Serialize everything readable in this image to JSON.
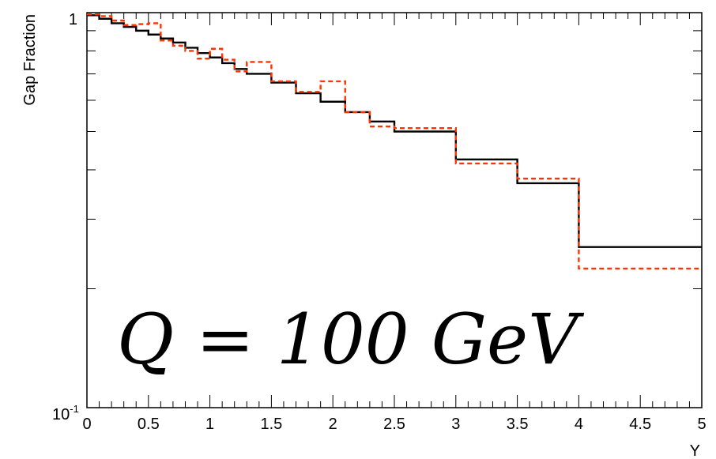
{
  "chart_data": {
    "type": "line",
    "ylabel": "Gap Fraction",
    "xlabel": "Y",
    "annotation": "Q = 100 GeV",
    "xlim": [
      0,
      5
    ],
    "ylim": [
      0.1,
      1
    ],
    "yscale": "log",
    "grid": false,
    "x_ticks": [
      {
        "value": 0,
        "label": "0"
      },
      {
        "value": 0.5,
        "label": "0.5"
      },
      {
        "value": 1,
        "label": "1"
      },
      {
        "value": 1.5,
        "label": "1.5"
      },
      {
        "value": 2,
        "label": "2"
      },
      {
        "value": 2.5,
        "label": "2.5"
      },
      {
        "value": 3,
        "label": "3"
      },
      {
        "value": 3.5,
        "label": "3.5"
      },
      {
        "value": 4,
        "label": "4"
      },
      {
        "value": 4.5,
        "label": "4.5"
      },
      {
        "value": 5,
        "label": "5"
      }
    ],
    "y_tick_labels": {
      "top": "1",
      "bottom_base": "10",
      "bottom_exp": "-1"
    },
    "series": [
      {
        "color": "#000000",
        "dash": "solid",
        "bin_edges": [
          0,
          0.1,
          0.2,
          0.3,
          0.4,
          0.5,
          0.6,
          0.7,
          0.8,
          0.9,
          1.0,
          1.1,
          1.2,
          1.3,
          1.5,
          1.7,
          1.9,
          2.1,
          2.3,
          2.5,
          3.0,
          3.5,
          4.0,
          5.0
        ],
        "values": [
          0.985,
          0.965,
          0.94,
          0.92,
          0.9,
          0.88,
          0.86,
          0.84,
          0.815,
          0.79,
          0.77,
          0.745,
          0.72,
          0.7,
          0.665,
          0.625,
          0.595,
          0.56,
          0.53,
          0.5,
          0.425,
          0.37,
          0.255
        ]
      },
      {
        "color": "#ff3300",
        "dash": "dashed",
        "bin_edges": [
          0,
          0.1,
          0.2,
          0.3,
          0.4,
          0.5,
          0.6,
          0.7,
          0.8,
          0.9,
          1.0,
          1.1,
          1.2,
          1.3,
          1.5,
          1.7,
          1.9,
          2.1,
          2.3,
          2.5,
          3.0,
          3.5,
          4.0,
          5.0
        ],
        "values": [
          0.99,
          0.98,
          0.955,
          0.93,
          0.935,
          0.94,
          0.85,
          0.825,
          0.8,
          0.765,
          0.81,
          0.76,
          0.71,
          0.75,
          0.67,
          0.63,
          0.67,
          0.56,
          0.515,
          0.51,
          0.415,
          0.38,
          0.225
        ]
      }
    ]
  }
}
